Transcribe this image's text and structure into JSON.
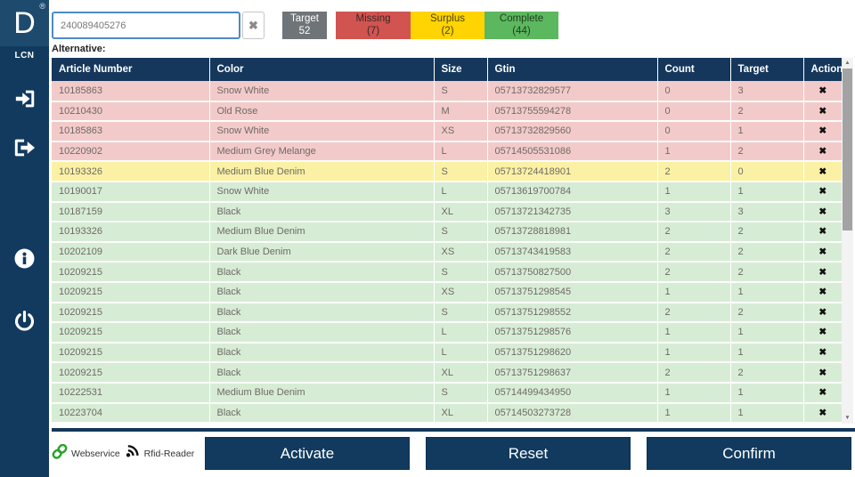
{
  "logo": {
    "letter": "D",
    "registered": "®",
    "subtitle": "LCN"
  },
  "sidebar": {
    "icons": [
      "login-icon",
      "logout-icon",
      "info-icon",
      "power-icon"
    ]
  },
  "topbar": {
    "input_value": "240089405276",
    "target": {
      "label": "Target",
      "value": "52"
    },
    "missing": {
      "label": "Missing",
      "value": "(7)"
    },
    "surplus": {
      "label": "Surplus",
      "value": "(2)"
    },
    "complete": {
      "label": "Complete",
      "value": "(44)"
    }
  },
  "alternative_label": "Alternative:",
  "table": {
    "columns": [
      "Article Number",
      "Color",
      "Size",
      "Gtin",
      "Count",
      "Target",
      "Action"
    ],
    "action_icon": "✖",
    "rows": [
      {
        "article": "10185863",
        "color": "Snow White",
        "size": "S",
        "gtin": "05713732829577",
        "count": "0",
        "target": "3",
        "status": "missing"
      },
      {
        "article": "10210430",
        "color": "Old Rose",
        "size": "M",
        "gtin": "05713755594278",
        "count": "0",
        "target": "2",
        "status": "missing"
      },
      {
        "article": "10185863",
        "color": "Snow White",
        "size": "XS",
        "gtin": "05713732829560",
        "count": "0",
        "target": "1",
        "status": "missing"
      },
      {
        "article": "10220902",
        "color": "Medium Grey Melange",
        "size": "L",
        "gtin": "05714505531086",
        "count": "1",
        "target": "2",
        "status": "missing"
      },
      {
        "article": "10193326",
        "color": "Medium Blue Denim",
        "size": "S",
        "gtin": "05713724418901",
        "count": "2",
        "target": "0",
        "status": "surplus"
      },
      {
        "article": "10190017",
        "color": "Snow White",
        "size": "L",
        "gtin": "05713619700784",
        "count": "1",
        "target": "1",
        "status": "complete"
      },
      {
        "article": "10187159",
        "color": "Black",
        "size": "XL",
        "gtin": "05713721342735",
        "count": "3",
        "target": "3",
        "status": "complete"
      },
      {
        "article": "10193326",
        "color": "Medium Blue Denim",
        "size": "S",
        "gtin": "05713728818981",
        "count": "2",
        "target": "2",
        "status": "complete"
      },
      {
        "article": "10202109",
        "color": "Dark Blue Denim",
        "size": "XS",
        "gtin": "05713743419583",
        "count": "2",
        "target": "2",
        "status": "complete"
      },
      {
        "article": "10209215",
        "color": "Black",
        "size": "S",
        "gtin": "05713750827500",
        "count": "2",
        "target": "2",
        "status": "complete"
      },
      {
        "article": "10209215",
        "color": "Black",
        "size": "XS",
        "gtin": "05713751298545",
        "count": "1",
        "target": "1",
        "status": "complete"
      },
      {
        "article": "10209215",
        "color": "Black",
        "size": "S",
        "gtin": "05713751298552",
        "count": "2",
        "target": "2",
        "status": "complete"
      },
      {
        "article": "10209215",
        "color": "Black",
        "size": "L",
        "gtin": "05713751298576",
        "count": "1",
        "target": "1",
        "status": "complete"
      },
      {
        "article": "10209215",
        "color": "Black",
        "size": "L",
        "gtin": "05713751298620",
        "count": "1",
        "target": "1",
        "status": "complete"
      },
      {
        "article": "10209215",
        "color": "Black",
        "size": "XL",
        "gtin": "05713751298637",
        "count": "2",
        "target": "2",
        "status": "complete"
      },
      {
        "article": "10222531",
        "color": "Medium Blue Denim",
        "size": "S",
        "gtin": "05714499434950",
        "count": "1",
        "target": "1",
        "status": "complete"
      },
      {
        "article": "10223704",
        "color": "Black",
        "size": "XL",
        "gtin": "05714503273728",
        "count": "1",
        "target": "1",
        "status": "complete"
      }
    ]
  },
  "icons": {
    "clear": "✖",
    "scroll_up": "▲",
    "scroll_down": "▼"
  },
  "footer": {
    "webservice_label": "Webservice",
    "rfid_label": "Rfid-Reader",
    "activate_label": "Activate",
    "reset_label": "Reset",
    "confirm_label": "Confirm"
  },
  "colors": {
    "sidebar_navy": "#123a5f",
    "header_navy": "#15375c",
    "button_navy": "#113a5e",
    "input_border_blue": "#4e8ac9",
    "target_gray": "#6f7478",
    "missing_red": "#d15450",
    "surplus_yellow": "#ffd400",
    "complete_green": "#5cb85f",
    "row_missing": "#f3caca",
    "row_surplus": "#fbf1a4",
    "row_complete": "#d7ecd5",
    "webservice_green": "#28a428"
  }
}
